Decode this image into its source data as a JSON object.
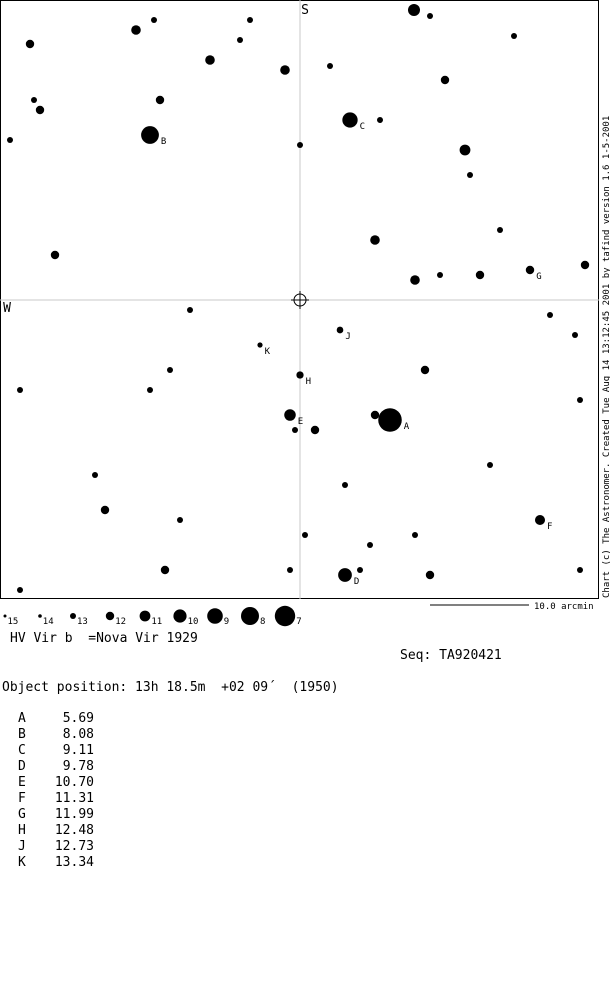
{
  "chart_data": {
    "type": "scatter",
    "title": "HV Vir b  =Nova Vir 1929",
    "compass": {
      "top": "S",
      "left": "W"
    },
    "credit": "Chart (c) The Astronomer. Created Tue Aug 14 13:12:45 2001 by tafind version 1.6 1-5-2001",
    "scale_label": "10.0 arcmin",
    "sequence_label": "Seq: TA920421",
    "object_position": "Object position: 13h 18.5m  +02 09´  (1950)",
    "magnitude_key": [
      "15",
      "14",
      "13",
      "12",
      "11",
      "10",
      "9",
      "8",
      "7"
    ],
    "sequence": [
      {
        "label": "A",
        "mag": "5.69"
      },
      {
        "label": "B",
        "mag": "8.08"
      },
      {
        "label": "C",
        "mag": "9.11"
      },
      {
        "label": "D",
        "mag": "9.78"
      },
      {
        "label": "E",
        "mag": "10.70"
      },
      {
        "label": "F",
        "mag": "11.31"
      },
      {
        "label": "G",
        "mag": "11.99"
      },
      {
        "label": "H",
        "mag": "12.48"
      },
      {
        "label": "J",
        "mag": "12.73"
      },
      {
        "label": "K",
        "mag": "13.34"
      }
    ],
    "xlim": [
      -15,
      15
    ],
    "ylim": [
      -15,
      15
    ],
    "stars": [
      {
        "x": 5.7,
        "y": 14.5,
        "mag": 10.5
      },
      {
        "x": 6.5,
        "y": 14.2,
        "mag": 13.0
      },
      {
        "x": -8.2,
        "y": 13.5,
        "mag": 11.5
      },
      {
        "x": -7.3,
        "y": 14.0,
        "mag": 13.0
      },
      {
        "x": -2.5,
        "y": 14.0,
        "mag": 13.0
      },
      {
        "x": -3.0,
        "y": 13.0,
        "mag": 13.0
      },
      {
        "x": -13.5,
        "y": 12.8,
        "mag": 12.0
      },
      {
        "x": 10.7,
        "y": 13.2,
        "mag": 13.0
      },
      {
        "x": -4.5,
        "y": 12.0,
        "mag": 11.5
      },
      {
        "x": -0.75,
        "y": 11.5,
        "mag": 11.5
      },
      {
        "x": 1.5,
        "y": 11.7,
        "mag": 13.0
      },
      {
        "x": 7.25,
        "y": 11.0,
        "mag": 12.0
      },
      {
        "x": -13.3,
        "y": 10.0,
        "mag": 13.0
      },
      {
        "x": -7.0,
        "y": 10.0,
        "mag": 12.0
      },
      {
        "x": -13.0,
        "y": 9.5,
        "mag": 12.0
      },
      {
        "x": 4.0,
        "y": 9.0,
        "mag": 13.0
      },
      {
        "x": -14.5,
        "y": 8.0,
        "mag": 13.0
      },
      {
        "x": 0.0,
        "y": 7.75,
        "mag": 13.0
      },
      {
        "x": 8.25,
        "y": 7.5,
        "mag": 11.0
      },
      {
        "x": 8.5,
        "y": 6.25,
        "mag": 13.0
      },
      {
        "x": 10.0,
        "y": 3.5,
        "mag": 13.0
      },
      {
        "x": 3.75,
        "y": 3.0,
        "mag": 11.5
      },
      {
        "x": -12.25,
        "y": 2.25,
        "mag": 12.0
      },
      {
        "x": 14.25,
        "y": 1.75,
        "mag": 12.0
      },
      {
        "x": 5.75,
        "y": 1.0,
        "mag": 11.5
      },
      {
        "x": 7.0,
        "y": 1.25,
        "mag": 13.0
      },
      {
        "x": 9.0,
        "y": 1.25,
        "mag": 12.0
      },
      {
        "x": -5.5,
        "y": -0.5,
        "mag": 13.0
      },
      {
        "x": 12.5,
        "y": -0.75,
        "mag": 13.0
      },
      {
        "x": 13.75,
        "y": -1.75,
        "mag": 13.0
      },
      {
        "x": -6.5,
        "y": -3.5,
        "mag": 13.0
      },
      {
        "x": 6.25,
        "y": -3.5,
        "mag": 12.0
      },
      {
        "x": -14.0,
        "y": -4.5,
        "mag": 13.0
      },
      {
        "x": -7.5,
        "y": -4.5,
        "mag": 13.0
      },
      {
        "x": 14.0,
        "y": -5.0,
        "mag": 13.0
      },
      {
        "x": 3.75,
        "y": -5.75,
        "mag": 12.0
      },
      {
        "x": -0.25,
        "y": -6.5,
        "mag": 13.0
      },
      {
        "x": 0.75,
        "y": -6.5,
        "mag": 12.0
      },
      {
        "x": 9.5,
        "y": -8.25,
        "mag": 13.0
      },
      {
        "x": -10.25,
        "y": -8.75,
        "mag": 13.0
      },
      {
        "x": 2.25,
        "y": -9.25,
        "mag": 13.0
      },
      {
        "x": -9.75,
        "y": -10.5,
        "mag": 12.0
      },
      {
        "x": -6.0,
        "y": -11.0,
        "mag": 13.0
      },
      {
        "x": 5.75,
        "y": -11.75,
        "mag": 13.0
      },
      {
        "x": 0.25,
        "y": -11.75,
        "mag": 13.0
      },
      {
        "x": 3.5,
        "y": -12.25,
        "mag": 13.0
      },
      {
        "x": -6.75,
        "y": -13.5,
        "mag": 12.0
      },
      {
        "x": -0.5,
        "y": -13.5,
        "mag": 13.0
      },
      {
        "x": 3.0,
        "y": -13.5,
        "mag": 13.0
      },
      {
        "x": 6.5,
        "y": -13.75,
        "mag": 12.0
      },
      {
        "x": 14.0,
        "y": -13.5,
        "mag": 13.0
      },
      {
        "x": -14.0,
        "y": -14.5,
        "mag": 13.0
      }
    ],
    "comparison_stars": [
      {
        "label": "A",
        "x": 4.5,
        "y": -6.0,
        "mag": 5.69
      },
      {
        "label": "B",
        "x": -7.5,
        "y": 8.25,
        "mag": 8.08
      },
      {
        "label": "C",
        "x": 2.5,
        "y": 9.0,
        "mag": 9.11
      },
      {
        "label": "D",
        "x": 2.25,
        "y": -13.75,
        "mag": 9.78
      },
      {
        "label": "E",
        "x": -0.5,
        "y": -5.75,
        "mag": 10.7
      },
      {
        "label": "F",
        "x": 12.0,
        "y": -11.0,
        "mag": 11.31
      },
      {
        "label": "G",
        "x": 11.5,
        "y": 1.5,
        "mag": 11.99
      },
      {
        "label": "H",
        "x": 0.0,
        "y": -3.75,
        "mag": 12.48
      },
      {
        "label": "J",
        "x": 2.0,
        "y": -1.5,
        "mag": 12.73
      },
      {
        "label": "K",
        "x": -2.0,
        "y": -2.25,
        "mag": 13.34
      }
    ]
  }
}
